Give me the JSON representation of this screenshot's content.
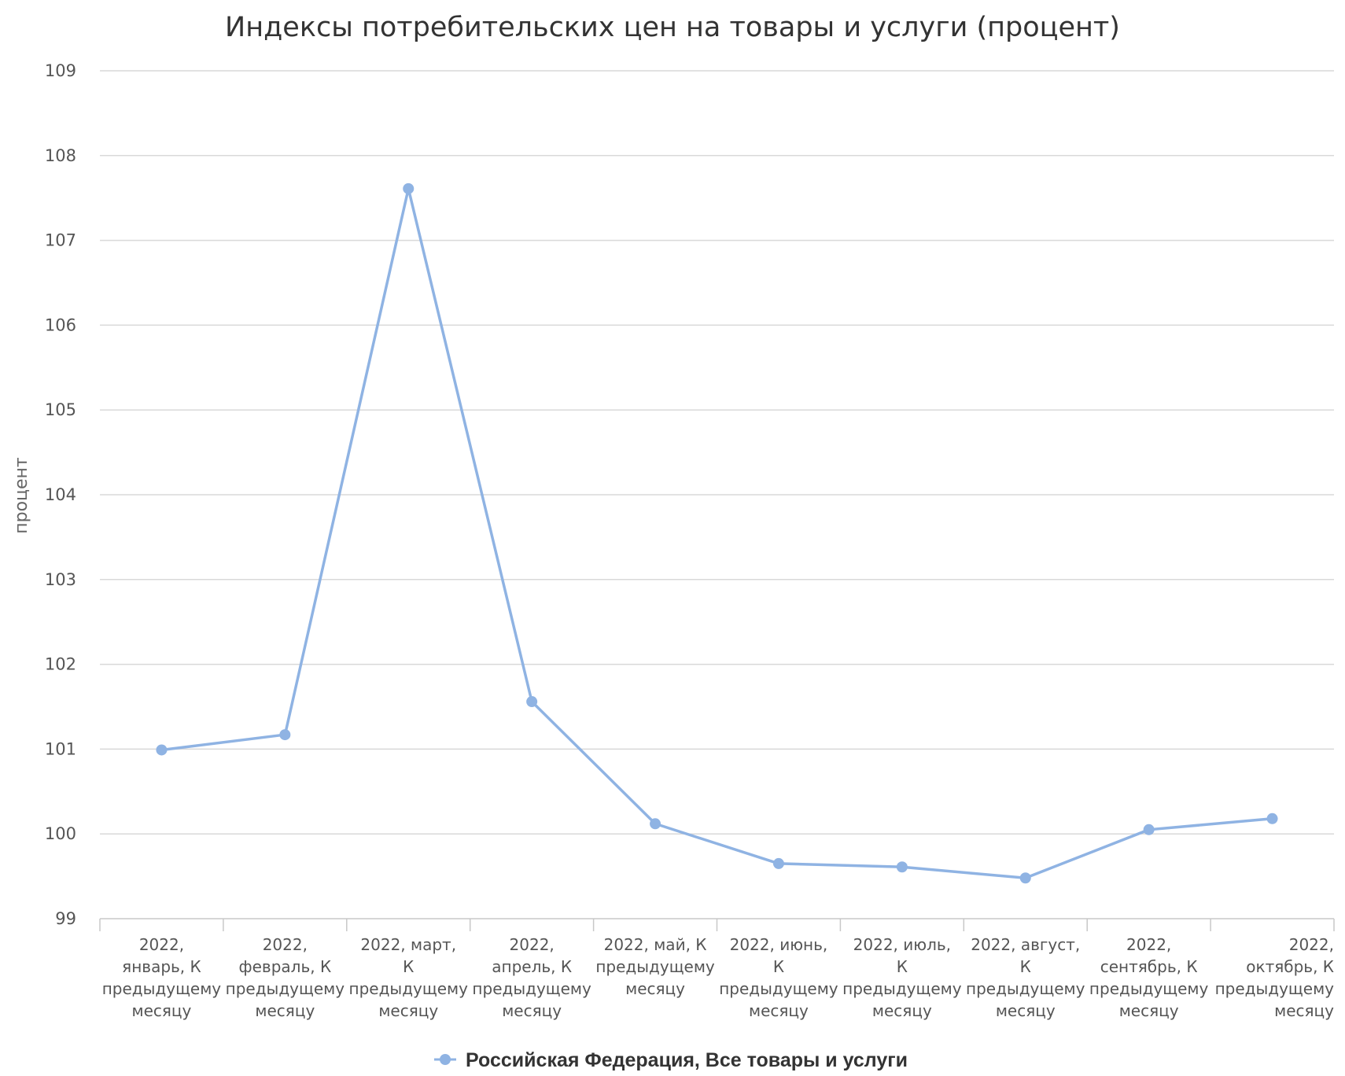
{
  "chart_data": {
    "type": "line",
    "title": "Индексы потребительских цен на товары и услуги (процент)",
    "xlabel": "",
    "ylabel": "процент",
    "ylim": [
      99,
      109
    ],
    "yticks": [
      99,
      100,
      101,
      102,
      103,
      104,
      105,
      106,
      107,
      108,
      109
    ],
    "grid": true,
    "legend_position": "bottom",
    "categories": [
      [
        "2022,",
        "январь, К",
        "предыдущему",
        "месяцу"
      ],
      [
        "2022,",
        "февраль, К",
        "предыдущему",
        "месяцу"
      ],
      [
        "2022, март,",
        "К",
        "предыдущему",
        "месяцу"
      ],
      [
        "2022,",
        "апрель, К",
        "предыдущему",
        "месяцу"
      ],
      [
        "2022, май, К",
        "предыдущему",
        "месяцу"
      ],
      [
        "2022, июнь,",
        "К",
        "предыдущему",
        "месяцу"
      ],
      [
        "2022, июль,",
        "К",
        "предыдущему",
        "месяцу"
      ],
      [
        "2022, август,",
        "К",
        "предыдущему",
        "месяцу"
      ],
      [
        "2022,",
        "сентябрь, К",
        "предыдущему",
        "месяцу"
      ],
      [
        "2022,",
        "октябрь, К",
        "предыдущему",
        "месяцу"
      ]
    ],
    "series": [
      {
        "name": "Российская Федерация, Все товары и услуги",
        "color": "#8fb3e3",
        "values": [
          100.99,
          101.17,
          107.61,
          101.56,
          100.12,
          99.65,
          99.61,
          99.48,
          100.05,
          100.18
        ]
      }
    ]
  }
}
